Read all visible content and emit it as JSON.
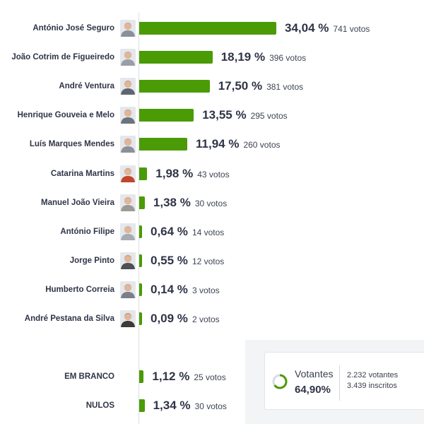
{
  "chart_data": {
    "type": "bar",
    "orientation": "horizontal",
    "bar_color": "#4a9b06",
    "candidates": [
      {
        "name": "António José Seguro",
        "percent": 34.04,
        "percent_label": "34,04 %",
        "votes": 741,
        "votes_label": "741 votos",
        "avatar_color": "#8a8f99"
      },
      {
        "name": "João Cotrim de Figueiredo",
        "percent": 18.19,
        "percent_label": "18,19 %",
        "votes": 396,
        "votes_label": "396 votos",
        "avatar_color": "#9a9ea6"
      },
      {
        "name": "André Ventura",
        "percent": 17.5,
        "percent_label": "17,50 %",
        "votes": 381,
        "votes_label": "381 votos",
        "avatar_color": "#5f6670"
      },
      {
        "name": "Henrique Gouveia e Melo",
        "percent": 13.55,
        "percent_label": "13,55 %",
        "votes": 295,
        "votes_label": "295 votos",
        "avatar_color": "#6d737c"
      },
      {
        "name": "Luís Marques Mendes",
        "percent": 11.94,
        "percent_label": "11,94 %",
        "votes": 260,
        "votes_label": "260 votos",
        "avatar_color": "#8c9099"
      },
      {
        "name": "Catarina Martins",
        "percent": 1.98,
        "percent_label": "1,98 %",
        "votes": 43,
        "votes_label": "43 votos",
        "avatar_color": "#c2452e"
      },
      {
        "name": "Manuel João Vieira",
        "percent": 1.38,
        "percent_label": "1,38 %",
        "votes": 30,
        "votes_label": "30 votos",
        "avatar_color": "#9b9a94"
      },
      {
        "name": "António Filipe",
        "percent": 0.64,
        "percent_label": "0,64 %",
        "votes": 14,
        "votes_label": "14 votos",
        "avatar_color": "#a7abb3"
      },
      {
        "name": "Jorge Pinto",
        "percent": 0.55,
        "percent_label": "0,55 %",
        "votes": 12,
        "votes_label": "12 votos",
        "avatar_color": "#4c4f55"
      },
      {
        "name": "Humberto Correia",
        "percent": 0.14,
        "percent_label": "0,14 %",
        "votes": 3,
        "votes_label": "3 votos",
        "avatar_color": "#7b7f87"
      },
      {
        "name": "André Pestana da Silva",
        "percent": 0.09,
        "percent_label": "0,09 %",
        "votes": 2,
        "votes_label": "2 votos",
        "avatar_color": "#3e3a36"
      }
    ],
    "other": [
      {
        "name": "EM BRANCO",
        "percent": 1.12,
        "percent_label": "1,12 %",
        "votes": 25,
        "votes_label": "25 votos"
      },
      {
        "name": "NULOS",
        "percent": 1.34,
        "percent_label": "1,34 %",
        "votes": 30,
        "votes_label": "30 votos"
      }
    ]
  },
  "turnout": {
    "label": "Votantes",
    "percent": 64.9,
    "percent_label": "64,90%",
    "voters_label": "2.232 votantes",
    "registered_label": "3.439 inscritos",
    "ring_color": "#4a9b06",
    "ring_track_color": "#d9dce1"
  }
}
